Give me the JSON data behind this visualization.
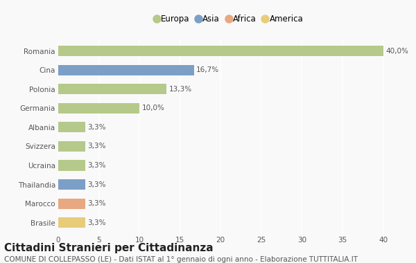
{
  "countries": [
    "Romania",
    "Cina",
    "Polonia",
    "Germania",
    "Albania",
    "Svizzera",
    "Ucraina",
    "Thailandia",
    "Marocco",
    "Brasile"
  ],
  "values": [
    40.0,
    16.7,
    13.3,
    10.0,
    3.3,
    3.3,
    3.3,
    3.3,
    3.3,
    3.3
  ],
  "labels": [
    "40,0%",
    "16,7%",
    "13,3%",
    "10,0%",
    "3,3%",
    "3,3%",
    "3,3%",
    "3,3%",
    "3,3%",
    "3,3%"
  ],
  "continents": [
    "Europa",
    "Asia",
    "Europa",
    "Europa",
    "Europa",
    "Europa",
    "Europa",
    "Asia",
    "Africa",
    "America"
  ],
  "colors": {
    "Europa": "#b5c98a",
    "Asia": "#7b9fc7",
    "Africa": "#e8a882",
    "America": "#e8cc7a"
  },
  "legend_labels": [
    "Europa",
    "Asia",
    "Africa",
    "America"
  ],
  "legend_colors": [
    "#b5c98a",
    "#7b9fc7",
    "#e8a882",
    "#e8cc7a"
  ],
  "title": "Cittadini Stranieri per Cittadinanza",
  "subtitle": "COMUNE DI COLLEPASSO (LE) - Dati ISTAT al 1° gennaio di ogni anno - Elaborazione TUTTITALIA.IT",
  "xlim": [
    0,
    42
  ],
  "xticks": [
    0,
    5,
    10,
    15,
    20,
    25,
    30,
    35,
    40
  ],
  "background_color": "#f9f9f9",
  "grid_color": "#ffffff",
  "title_fontsize": 11,
  "subtitle_fontsize": 7.5,
  "label_fontsize": 7.5,
  "tick_fontsize": 7.5
}
